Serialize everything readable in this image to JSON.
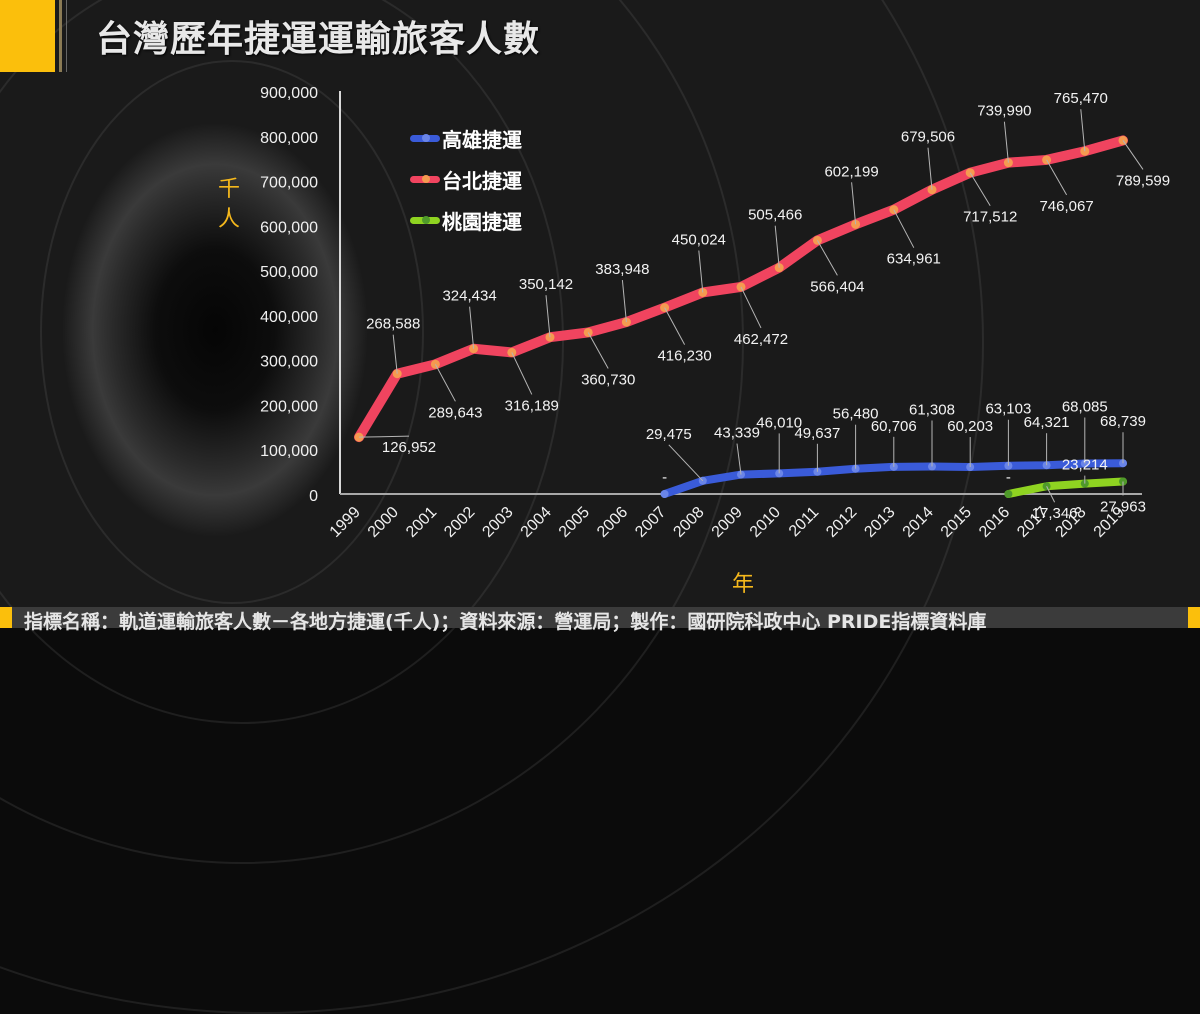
{
  "title": "台灣歷年捷運運輸旅客人數",
  "y_axis_unit": "千人",
  "x_axis_unit": "年",
  "footer": "指標名稱：軌道運輸旅客人數－各地方捷運(千人)；資料來源：營運局；製作：國研院科政中心 PRIDE指標資料庫",
  "legend": [
    {
      "label": "高雄捷運",
      "color": "#3a5bd9",
      "dot": "#6a85e8"
    },
    {
      "label": "台北捷運",
      "color": "#f0445f",
      "dot": "#f59a50"
    },
    {
      "label": "桃園捷運",
      "color": "#8fd321",
      "dot": "#4f9a2a"
    }
  ],
  "chart_data": {
    "type": "line",
    "title": "台灣歷年捷運運輸旅客人數",
    "xlabel": "年",
    "ylabel": "千人",
    "ylim": [
      0,
      900000
    ],
    "yticks": [
      "0",
      "100,000",
      "200,000",
      "300,000",
      "400,000",
      "500,000",
      "600,000",
      "700,000",
      "800,000",
      "900,000"
    ],
    "grid": false,
    "legend_position": "upper-left-inside",
    "categories": [
      "1999",
      "2000",
      "2001",
      "2002",
      "2003",
      "2004",
      "2005",
      "2006",
      "2007",
      "2008",
      "2009",
      "2010",
      "2011",
      "2012",
      "2013",
      "2014",
      "2015",
      "2016",
      "2017",
      "2018",
      "2019"
    ],
    "series": [
      {
        "name": "高雄捷運",
        "color": "#3a5bd9",
        "values": [
          null,
          null,
          null,
          null,
          null,
          null,
          null,
          null,
          0,
          29475,
          43339,
          46010,
          49637,
          56480,
          60706,
          61308,
          60203,
          63103,
          64321,
          68085,
          68739
        ],
        "labels": [
          null,
          null,
          null,
          null,
          null,
          null,
          null,
          null,
          "-",
          "29,475",
          "43,339",
          "46,010",
          "49,637",
          "56,480",
          "60,706",
          "61,308",
          "60,203",
          "63,103",
          "64,321",
          "68,085",
          "68,739"
        ]
      },
      {
        "name": "台北捷運",
        "color": "#f0445f",
        "values": [
          126952,
          268588,
          289643,
          324434,
          316189,
          350142,
          360730,
          383948,
          416230,
          450024,
          462472,
          505466,
          566404,
          602199,
          634961,
          679506,
          717512,
          739990,
          746067,
          765470,
          789599
        ],
        "labels": [
          "126,952",
          "268,588",
          "289,643",
          "324,434",
          "316,189",
          "350,142",
          "360,730",
          "383,948",
          "416,230",
          "450,024",
          "462,472",
          "505,466",
          "566,404",
          "602,199",
          "634,961",
          "679,506",
          "717,512",
          "739,990",
          "746,067",
          "765,470",
          "789,599"
        ]
      },
      {
        "name": "桃園捷運",
        "color": "#8fd321",
        "values": [
          null,
          null,
          null,
          null,
          null,
          null,
          null,
          null,
          null,
          null,
          null,
          null,
          null,
          null,
          null,
          null,
          null,
          0,
          17346,
          23214,
          27963
        ],
        "labels": [
          null,
          null,
          null,
          null,
          null,
          null,
          null,
          null,
          null,
          null,
          null,
          null,
          null,
          null,
          null,
          null,
          null,
          "-",
          "17,346",
          "23,214",
          "27,963"
        ]
      }
    ]
  }
}
